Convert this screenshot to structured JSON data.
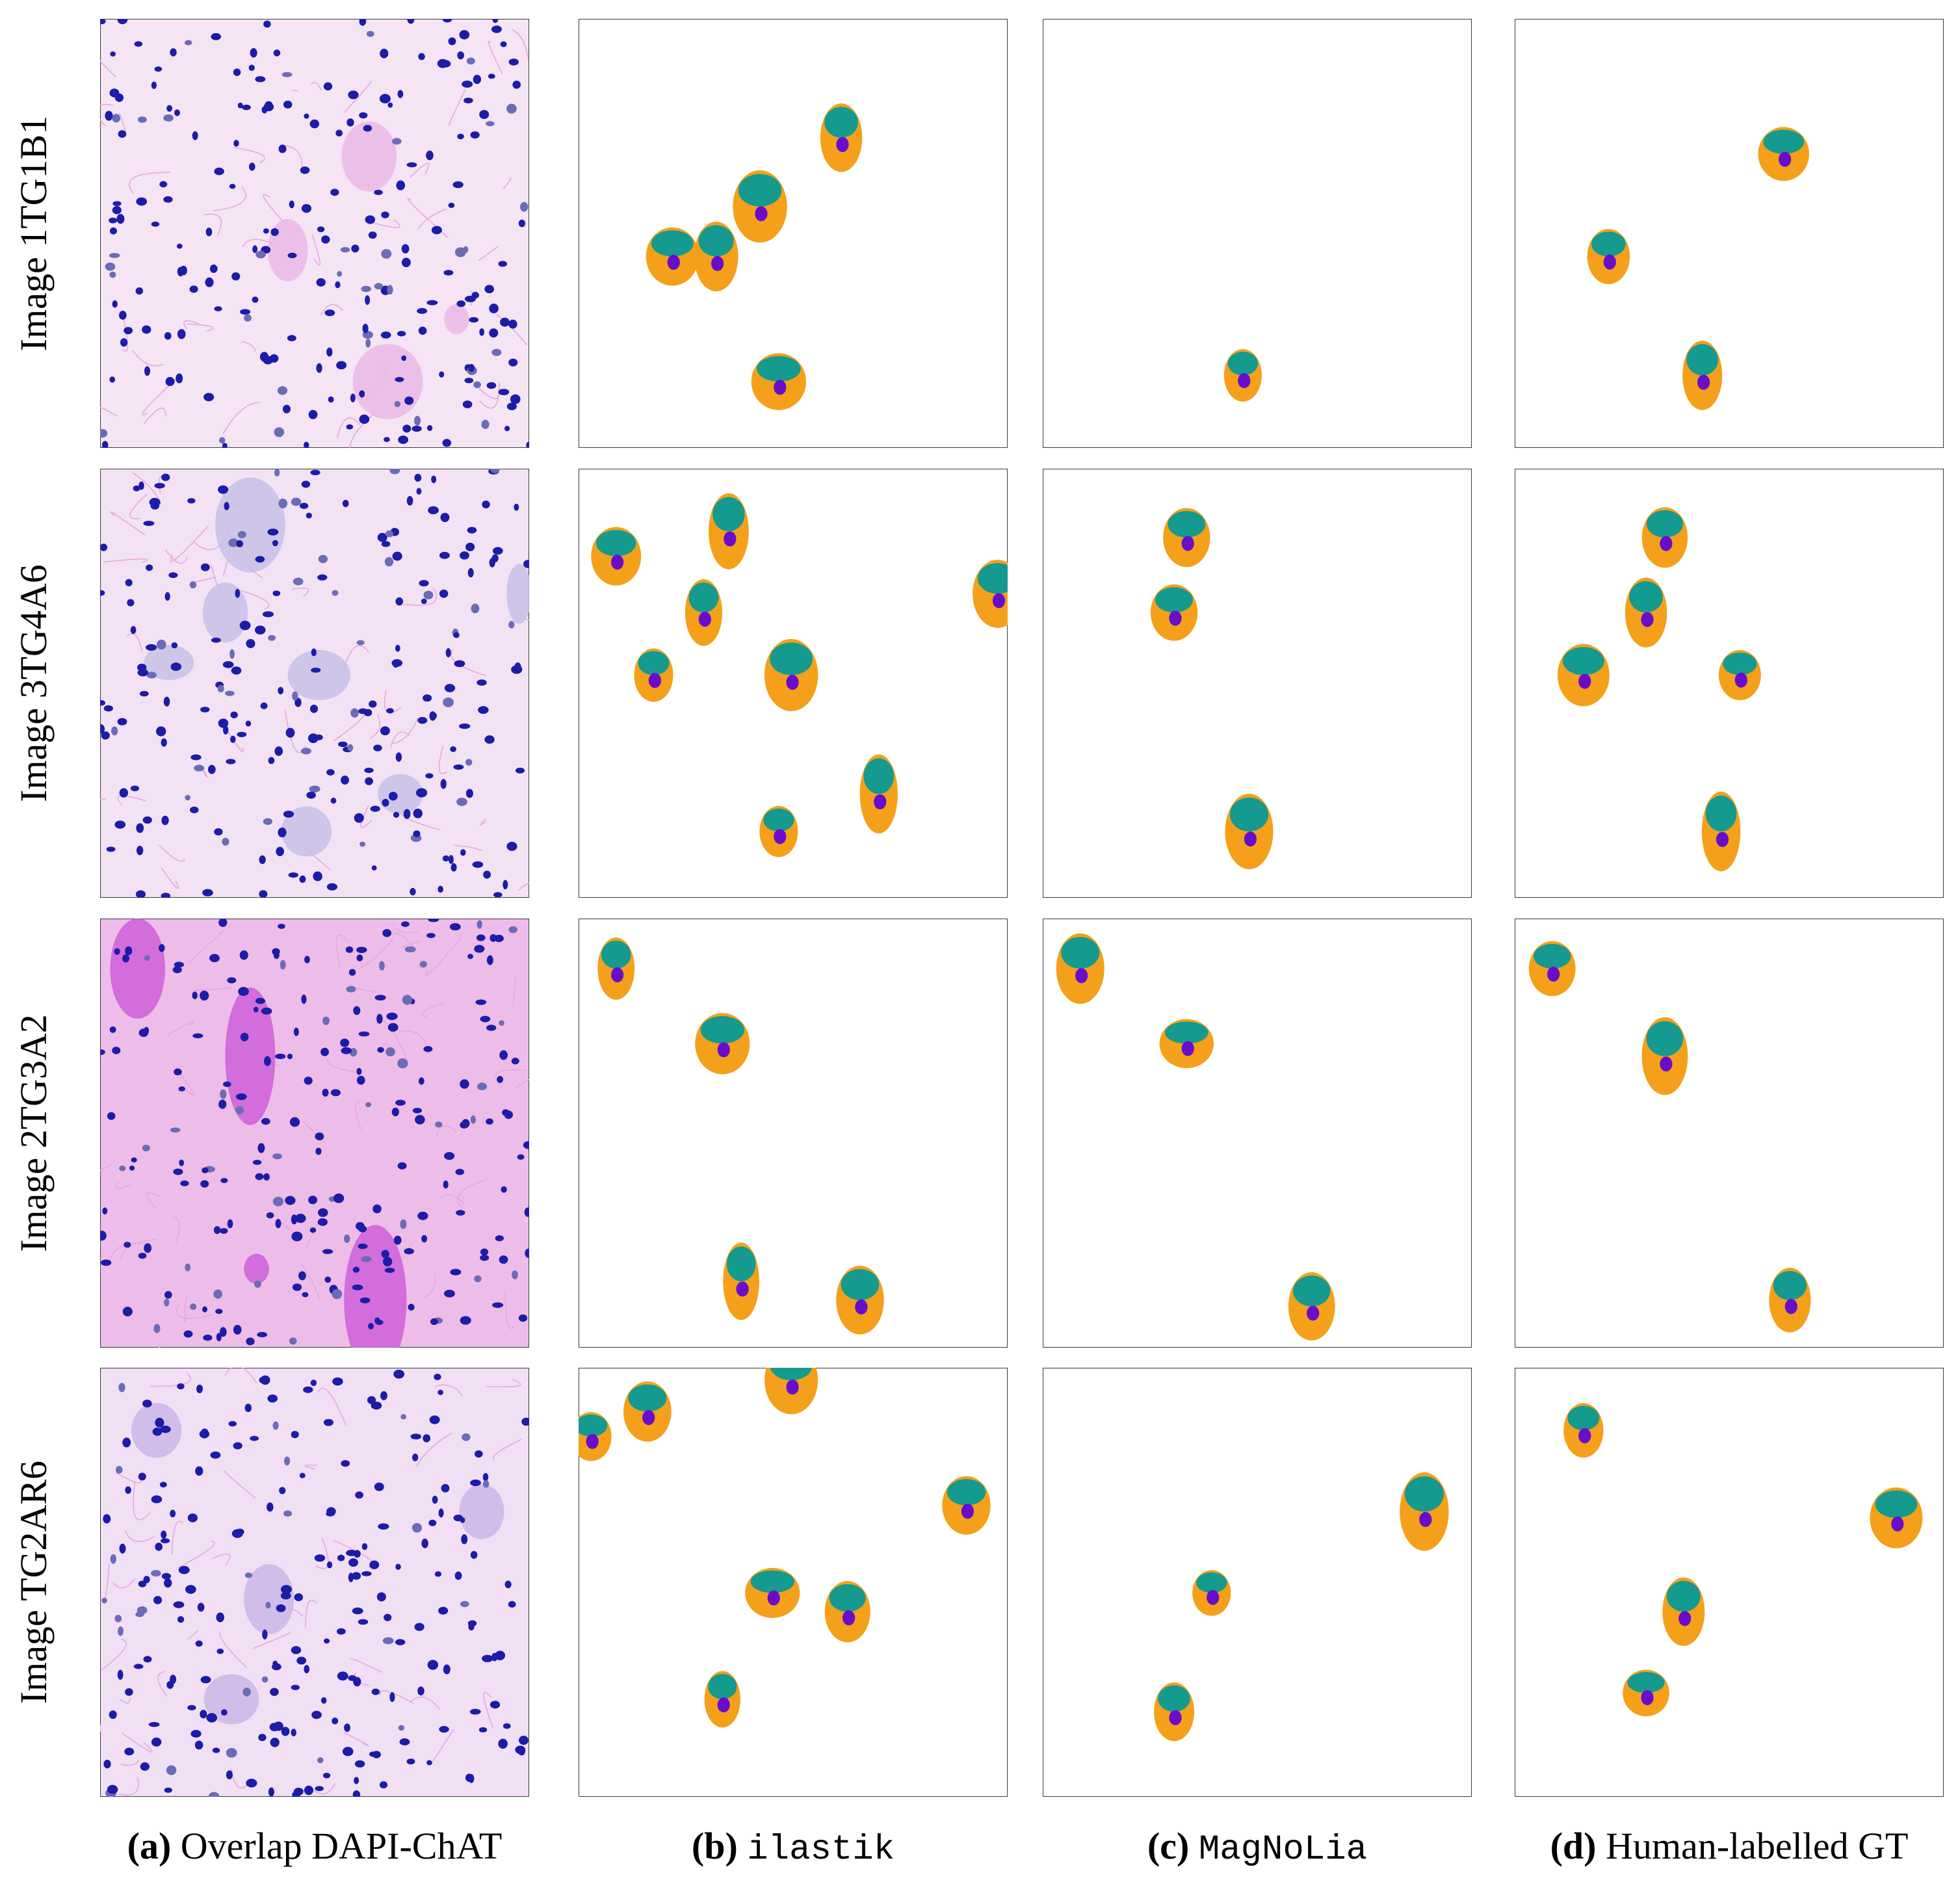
{
  "rows": [
    {
      "label": "Image 1TG1B1"
    },
    {
      "label": "Image 3TG4A6"
    },
    {
      "label": "Image 2TG3A2"
    },
    {
      "label": "Image TG2AR6"
    }
  ],
  "columns": [
    {
      "tag": "(a)",
      "text": "Overlap DAPI-ChAT"
    },
    {
      "tag": "(b)",
      "text": "ilastik"
    },
    {
      "tag": "(c)",
      "text": "MagNoLia"
    },
    {
      "tag": "(d)",
      "text": "Human-labelled GT"
    }
  ]
}
